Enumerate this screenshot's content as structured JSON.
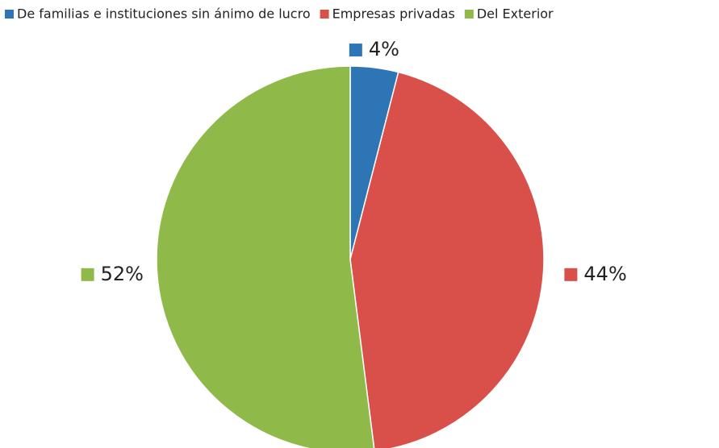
{
  "chart_data": {
    "type": "pie",
    "categories": [
      "De familias e instituciones sin ánimo de lucro",
      "Empresas privadas",
      "Del Exterior"
    ],
    "values": [
      4,
      44,
      52
    ],
    "value_labels": [
      "4%",
      "44%",
      "52%"
    ],
    "colors": [
      "#2e75b6",
      "#d9504b",
      "#8fba4a"
    ],
    "legend": "top"
  }
}
